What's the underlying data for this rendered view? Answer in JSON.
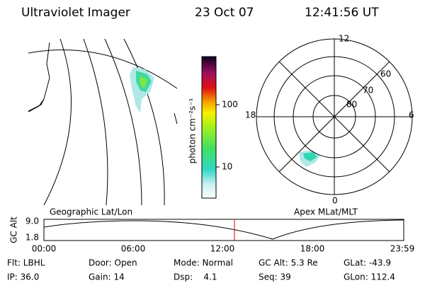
{
  "header": {
    "title": "Ultraviolet Imager",
    "date": "23 Oct 07",
    "time": "12:41:56 UT"
  },
  "colorbar": {
    "label": "photon cm⁻²s⁻¹",
    "ticks": [
      "100",
      "10"
    ]
  },
  "polar_plot": {
    "mlt_labels": [
      "12",
      "18",
      "6",
      "0"
    ],
    "lat_labels": [
      "60",
      "70",
      "80"
    ]
  },
  "panel_labels": {
    "left": "Geographic Lat/Lon",
    "right": "Apex MLat/MLT"
  },
  "timeline": {
    "axis_label": "GC Alt",
    "y_labels": [
      "9.0",
      "1.8"
    ],
    "x_labels": [
      "00:00",
      "06:00",
      "12:00",
      "18:00",
      "23:59"
    ]
  },
  "status": {
    "rows": [
      [
        "Flt: LBHL",
        "Door: Open",
        "Mode: Normal",
        "GC Alt: 5.3 Re",
        "GLat: -43.9"
      ],
      [
        "IP: 36.0",
        "Gain: 14",
        "Dsp:    4.1",
        "Seq: 39",
        "GLon: 112.4"
      ]
    ]
  }
}
